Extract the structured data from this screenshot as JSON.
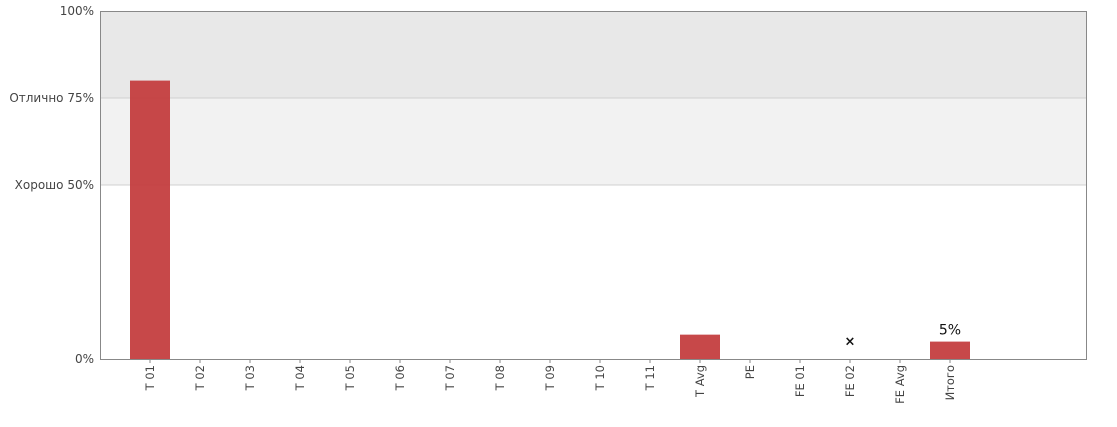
{
  "chart_data": {
    "type": "bar",
    "categories": [
      "T 01",
      "T 02",
      "T 03",
      "T 04",
      "T 05",
      "T 06",
      "T 07",
      "T 08",
      "T 09",
      "T 10",
      "T 11",
      "T Avg",
      "PE",
      "FE 01",
      "FE 02",
      "FE Avg",
      "Итого"
    ],
    "values": [
      80,
      null,
      null,
      null,
      null,
      null,
      null,
      null,
      null,
      null,
      null,
      7,
      null,
      null,
      null,
      null,
      5
    ],
    "markers": [
      {
        "category": "FE 02",
        "value": 5,
        "symbol": "×"
      }
    ],
    "data_labels": [
      {
        "category": "Итого",
        "text": "5%"
      }
    ],
    "ylim": [
      0,
      100
    ],
    "y_ticks": [
      {
        "value": 0,
        "label": "0%"
      },
      {
        "value": 50,
        "label": "Хорошо 50%"
      },
      {
        "value": 75,
        "label": "Отлично 75%"
      },
      {
        "value": 100,
        "label": "100%"
      }
    ],
    "bands": [
      {
        "from": 50,
        "to": 75,
        "color": "#f2f2f2"
      },
      {
        "from": 75,
        "to": 100,
        "color": "#e8e8e8"
      }
    ],
    "bar_color": "#c2383a",
    "grid": true,
    "legend": "none"
  }
}
